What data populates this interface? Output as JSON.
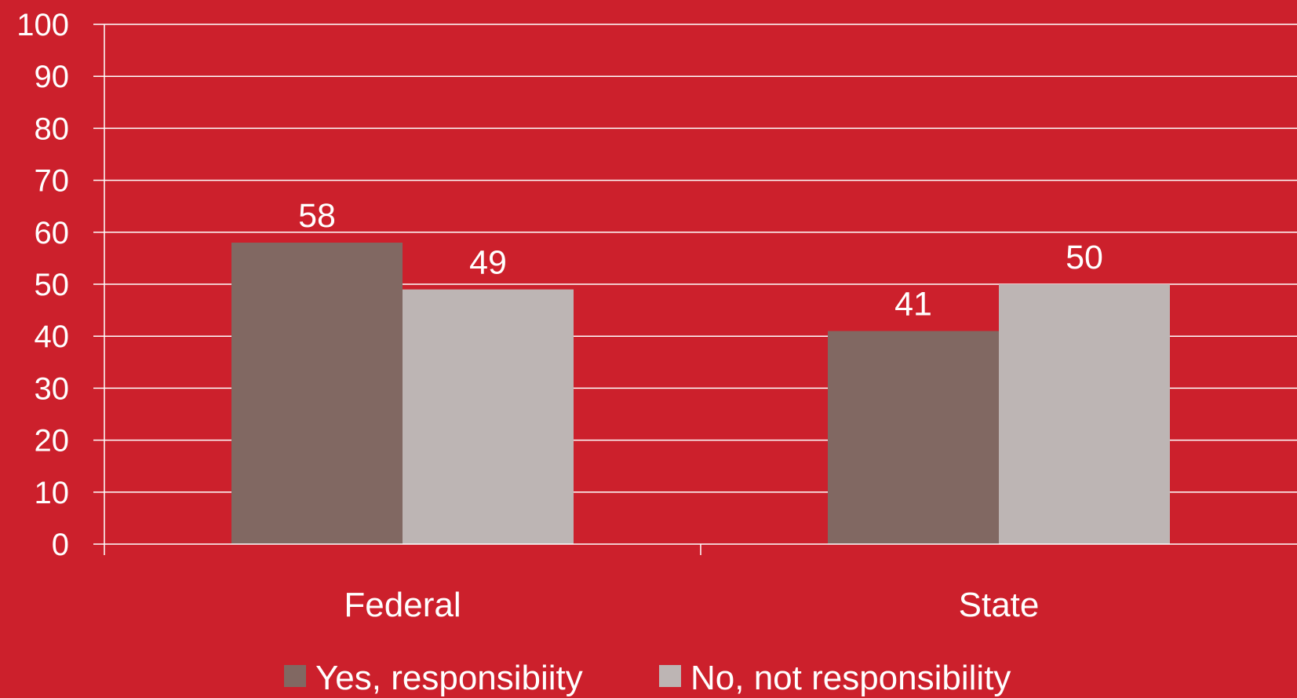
{
  "colors": {
    "background": "#cc202c",
    "gridline": "#ffffff",
    "axis": "#ffffff",
    "text": "#ffffff"
  },
  "chart_data": {
    "type": "bar",
    "title": "",
    "xlabel": "",
    "ylabel": "",
    "categories": [
      "Federal",
      "State"
    ],
    "series": [
      {
        "name": "Yes, responsibiity",
        "values": [
          58,
          41
        ],
        "color": "#816862"
      },
      {
        "name": "No, not responsibility",
        "values": [
          49,
          50
        ],
        "color": "#bdb5b4"
      }
    ],
    "ylim": [
      0,
      100
    ],
    "yticks": [
      0,
      10,
      20,
      30,
      40,
      50,
      60,
      70,
      80,
      90,
      100
    ],
    "grid": true,
    "data_labels": true,
    "legend_position": "bottom"
  }
}
